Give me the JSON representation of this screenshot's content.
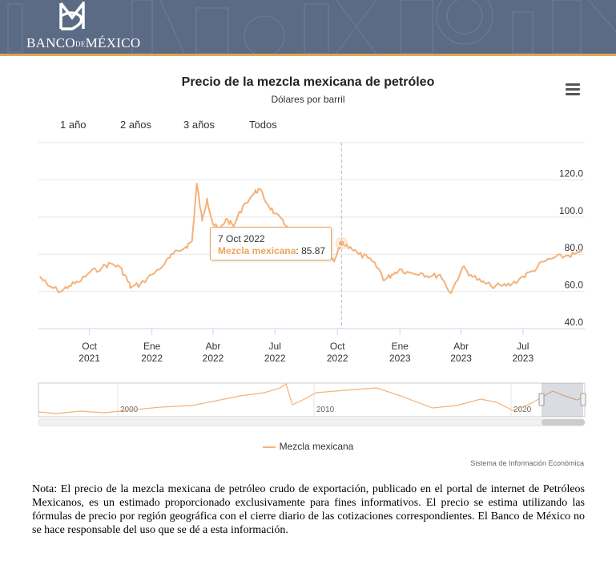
{
  "header": {
    "logo_text_main1": "BANCO",
    "logo_text_small": "DE",
    "logo_text_main2": "MÉXICO"
  },
  "chart": {
    "title": "Precio de la mezcla mexicana de petróleo",
    "subtitle": "Dólares por barril",
    "range_buttons": [
      "1 año",
      "2 años",
      "3 años",
      "Todos"
    ],
    "menu_icon": "hamburger-menu-icon",
    "legend_label": "Mezcla mexicana",
    "credits": "Sistema de Información Económica",
    "series_color": "#f4b27a"
  },
  "tooltip": {
    "date": "7 Oct 2022",
    "series": "Mezcla mexicana",
    "value": "85.87"
  },
  "chart_data": {
    "type": "line",
    "title": "Precio de la mezcla mexicana de petróleo",
    "subtitle": "Dólares por barril",
    "ylabel": "",
    "ylim": [
      40,
      140
    ],
    "yticks": [
      "40.0",
      "60.0",
      "80.0",
      "100.0",
      "120.0"
    ],
    "xticks": [
      {
        "month": "Oct",
        "year": "2021"
      },
      {
        "month": "Ene",
        "year": "2022"
      },
      {
        "month": "Abr",
        "year": "2022"
      },
      {
        "month": "Jul",
        "year": "2022"
      },
      {
        "month": "Oct",
        "year": "2022"
      },
      {
        "month": "Ene",
        "year": "2023"
      },
      {
        "month": "Abr",
        "year": "2023"
      },
      {
        "month": "Jul",
        "year": "2023"
      }
    ],
    "legend": "bottom-center",
    "grid": true,
    "series": [
      {
        "name": "Mezcla mexicana",
        "x": [
          "2021-07-20",
          "2021-08-01",
          "2021-08-20",
          "2021-09-01",
          "2021-09-15",
          "2021-10-01",
          "2021-10-20",
          "2021-11-01",
          "2021-11-15",
          "2021-11-26",
          "2021-12-01",
          "2021-12-15",
          "2022-01-01",
          "2022-01-20",
          "2022-02-01",
          "2022-02-20",
          "2022-03-01",
          "2022-03-08",
          "2022-03-16",
          "2022-03-23",
          "2022-04-01",
          "2022-04-11",
          "2022-04-20",
          "2022-05-01",
          "2022-05-15",
          "2022-06-01",
          "2022-06-08",
          "2022-06-20",
          "2022-07-01",
          "2022-07-15",
          "2022-08-01",
          "2022-08-15",
          "2022-09-01",
          "2022-09-15",
          "2022-09-26",
          "2022-10-07",
          "2022-10-20",
          "2022-11-01",
          "2022-11-15",
          "2022-12-01",
          "2022-12-09",
          "2022-12-20",
          "2023-01-01",
          "2023-01-15",
          "2023-02-01",
          "2023-02-15",
          "2023-03-01",
          "2023-03-17",
          "2023-04-03",
          "2023-04-15",
          "2023-05-01",
          "2023-05-15",
          "2023-06-01",
          "2023-06-15",
          "2023-07-01",
          "2023-07-15",
          "2023-08-01",
          "2023-08-15",
          "2023-09-01",
          "2023-09-15",
          "2023-09-25"
        ],
        "values": [
          68,
          63,
          60,
          63,
          65,
          70,
          73,
          75,
          73,
          66,
          62,
          64,
          69,
          75,
          80,
          84,
          87,
          118,
          98,
          110,
          96,
          93,
          99,
          95,
          106,
          113,
          115,
          107,
          102,
          96,
          91,
          85,
          82,
          79,
          76,
          85.87,
          84,
          80,
          78,
          72,
          66,
          69,
          72,
          70,
          70,
          68,
          69,
          59,
          73,
          69,
          65,
          63,
          63,
          64,
          68,
          71,
          76,
          78,
          79,
          80,
          81
        ]
      }
    ]
  },
  "navigator": {
    "labels": [
      "2000",
      "2010",
      "2020"
    ]
  },
  "note": {
    "text": "Nota: El precio de la mezcla mexicana de petróleo crudo de exportación, publicado en el portal de internet de Petróleos Mexicanos, es un estimado proporcionado exclusivamente para fines informativos. El precio se estima utilizando las fórmulas de precio por región geográfica con el cierre diario de las cotizaciones correspondientes. El Banco de México no se hace responsable del uso que se dé a esta información."
  }
}
